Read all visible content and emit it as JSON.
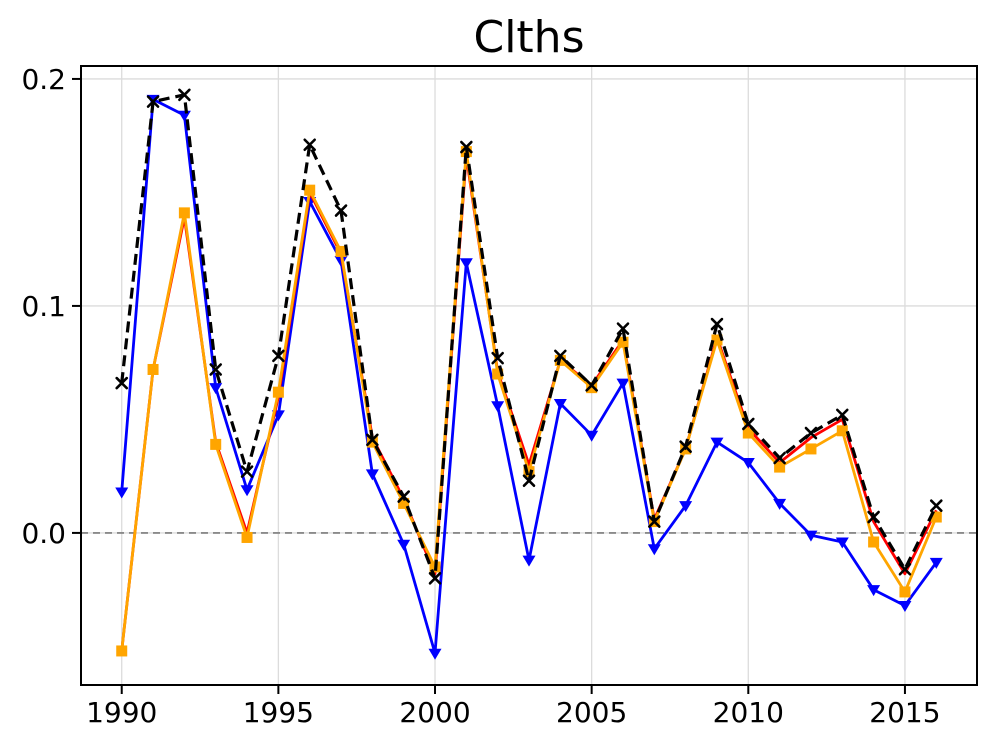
{
  "chart_data": {
    "type": "line",
    "title": "Clths",
    "x": [
      1990,
      1991,
      1992,
      1993,
      1994,
      1995,
      1996,
      1997,
      1998,
      1999,
      2000,
      2001,
      2002,
      2003,
      2004,
      2005,
      2006,
      2007,
      2008,
      2009,
      2010,
      2011,
      2012,
      2013,
      2014,
      2015,
      2016
    ],
    "series": [
      {
        "name": "blue-triangle-down",
        "color": "#0000ff",
        "marker": "triangle-down",
        "line": "solid",
        "values": [
          0.018,
          0.191,
          0.184,
          0.064,
          0.019,
          0.052,
          0.146,
          0.12,
          0.026,
          -0.005,
          -0.053,
          0.119,
          0.056,
          -0.012,
          0.057,
          0.043,
          0.066,
          -0.007,
          0.012,
          0.04,
          0.031,
          0.013,
          -0.001,
          -0.004,
          -0.025,
          -0.032,
          -0.013
        ]
      },
      {
        "name": "red-solid",
        "color": "#ff0000",
        "marker": "none",
        "line": "solid",
        "values": [
          -0.052,
          0.072,
          0.139,
          0.04,
          0.0,
          0.06,
          0.15,
          0.123,
          0.042,
          0.015,
          -0.018,
          0.166,
          0.071,
          0.03,
          0.076,
          0.065,
          0.085,
          0.006,
          0.037,
          0.086,
          0.046,
          0.031,
          0.042,
          0.05,
          0.005,
          -0.018,
          0.01
        ]
      },
      {
        "name": "orange-square",
        "color": "#ffa500",
        "marker": "square",
        "line": "solid",
        "values": [
          -0.052,
          0.072,
          0.141,
          0.039,
          -0.002,
          0.062,
          0.151,
          0.124,
          0.04,
          0.013,
          -0.015,
          0.168,
          0.07,
          0.027,
          0.076,
          0.064,
          0.084,
          0.005,
          0.037,
          0.085,
          0.044,
          0.029,
          0.037,
          0.045,
          -0.004,
          -0.026,
          0.007
        ]
      },
      {
        "name": "black-dashed-x",
        "color": "#000000",
        "marker": "x",
        "line": "dashed",
        "values": [
          0.066,
          0.19,
          0.193,
          0.072,
          0.027,
          0.078,
          0.171,
          0.142,
          0.041,
          0.016,
          -0.02,
          0.17,
          0.077,
          0.023,
          0.078,
          0.065,
          0.09,
          0.005,
          0.038,
          0.092,
          0.048,
          0.033,
          0.044,
          0.052,
          0.007,
          -0.016,
          0.012
        ]
      }
    ],
    "xlim": [
      1988.7,
      2017.3
    ],
    "ylim": [
      -0.067,
      0.2057
    ],
    "xticks": [
      1990,
      1995,
      2000,
      2005,
      2010,
      2015
    ],
    "yticks": [
      0.0,
      0.1,
      0.2
    ],
    "ytick_labels": [
      "0.0",
      "0.1",
      "0.2"
    ],
    "grid": true,
    "legend": false,
    "zero_line": {
      "value": 0.0,
      "color": "#8a8a8a",
      "style": "dashed"
    },
    "grid_color": "#dcdcdc",
    "spine_color": "#000000",
    "background_color": "#ffffff"
  }
}
